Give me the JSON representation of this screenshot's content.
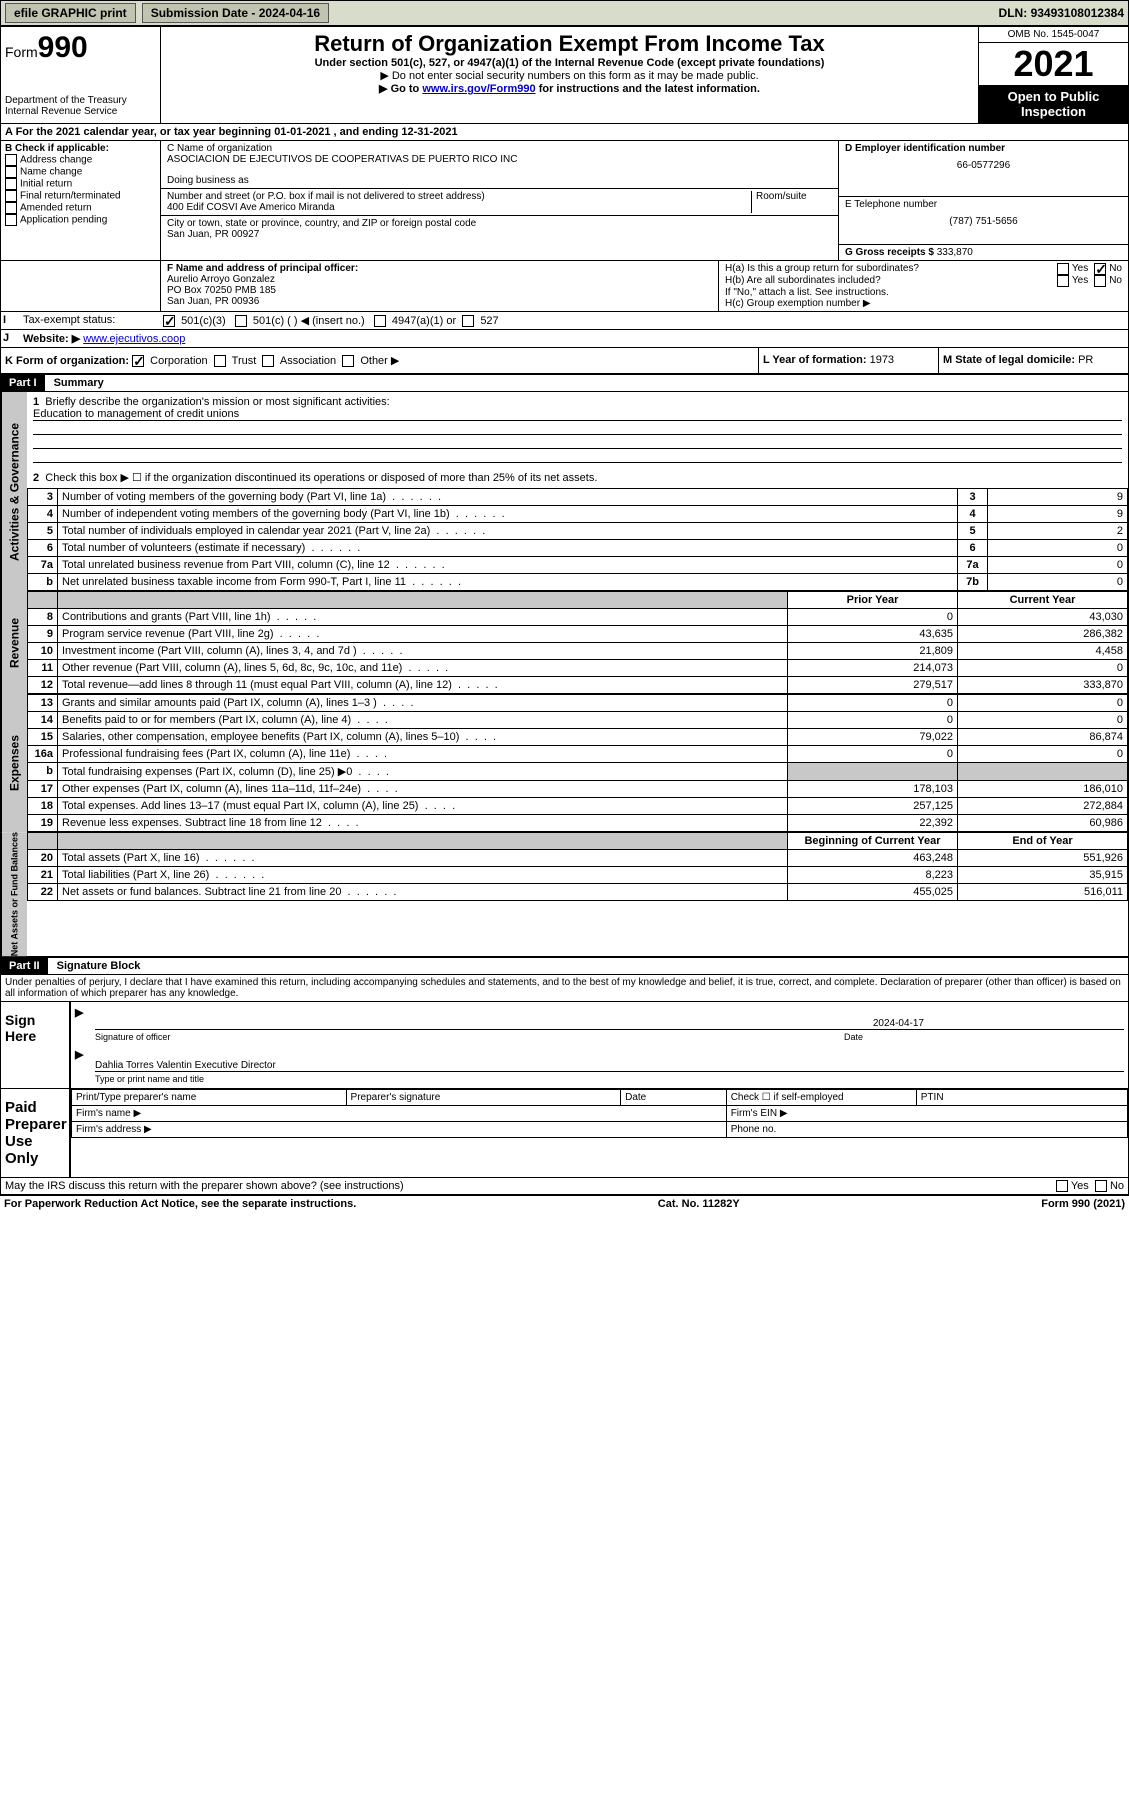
{
  "topbar": {
    "efile": "efile GRAPHIC print",
    "sub_label": "Submission Date -",
    "sub_date": "2024-04-16",
    "dln_label": "DLN:",
    "dln": "93493108012384"
  },
  "header": {
    "form_word": "Form",
    "form_no": "990",
    "dept": "Department of the Treasury",
    "irs": "Internal Revenue Service",
    "title": "Return of Organization Exempt From Income Tax",
    "sub1": "Under section 501(c), 527, or 4947(a)(1) of the Internal Revenue Code (except private foundations)",
    "sub2": "▶ Do not enter social security numbers on this form as it may be made public.",
    "sub3_pre": "▶ Go to ",
    "sub3_link": "www.irs.gov/Form990",
    "sub3_post": " for instructions and the latest information.",
    "omb": "OMB No. 1545-0047",
    "year": "2021",
    "open": "Open to Public Inspection"
  },
  "secA": {
    "text": "A For the 2021 calendar year, or tax year beginning 01-01-2021   , and ending 12-31-2021"
  },
  "secB": {
    "label": "B Check if applicable:",
    "items": [
      "Address change",
      "Name change",
      "Initial return",
      "Final return/terminated",
      "Amended return",
      "Application pending"
    ]
  },
  "secC": {
    "name_label": "C Name of organization",
    "name": "ASOCIACION DE EJECUTIVOS DE COOPERATIVAS DE PUERTO RICO INC",
    "dba_label": "Doing business as",
    "dba": "",
    "street_label": "Number and street (or P.O. box if mail is not delivered to street address)",
    "room_label": "Room/suite",
    "street": "400 Edif COSVI Ave Americo Miranda",
    "city_label": "City or town, state or province, country, and ZIP or foreign postal code",
    "city": "San Juan, PR  00927"
  },
  "secD": {
    "label": "D Employer identification number",
    "val": "66-0577296"
  },
  "secE": {
    "label": "E Telephone number",
    "val": "(787) 751-5656"
  },
  "secG": {
    "label": "G Gross receipts $",
    "val": "333,870"
  },
  "secF": {
    "label": "F Name and address of principal officer:",
    "name": "Aurelio Arroyo Gonzalez",
    "addr1": "PO Box 70250 PMB 185",
    "addr2": "San Juan, PR  00936"
  },
  "secH": {
    "ha": "H(a)  Is this a group return for subordinates?",
    "hb": "H(b)  Are all subordinates included?",
    "hb_note": "If \"No,\" attach a list. See instructions.",
    "hc": "H(c)  Group exemption number ▶",
    "yes": "Yes",
    "no": "No"
  },
  "secI": {
    "label": "Tax-exempt status:",
    "opt1": "501(c)(3)",
    "opt2": "501(c) (  ) ◀ (insert no.)",
    "opt3": "4947(a)(1) or",
    "opt4": "527"
  },
  "secJ": {
    "label": "Website: ▶",
    "val": "www.ejecutivos.coop"
  },
  "secK": {
    "label": "K Form of organization:",
    "opts": [
      "Corporation",
      "Trust",
      "Association",
      "Other ▶"
    ]
  },
  "secL": {
    "label": "L Year of formation:",
    "val": "1973"
  },
  "secM": {
    "label": "M State of legal domicile:",
    "val": "PR"
  },
  "part1": {
    "hdr": "Part I",
    "title": "Summary"
  },
  "summary": {
    "q1_label": "1",
    "q1_text": "Briefly describe the organization's mission or most significant activities:",
    "q1_answer": "Education to management of credit unions",
    "q2_label": "2",
    "q2_text": "Check this box ▶ ☐  if the organization discontinued its operations or disposed of more than 25% of its net assets."
  },
  "gov_rows": [
    {
      "n": "3",
      "text": "Number of voting members of the governing body (Part VI, line 1a)",
      "box": "3",
      "val": "9"
    },
    {
      "n": "4",
      "text": "Number of independent voting members of the governing body (Part VI, line 1b)",
      "box": "4",
      "val": "9"
    },
    {
      "n": "5",
      "text": "Total number of individuals employed in calendar year 2021 (Part V, line 2a)",
      "box": "5",
      "val": "2"
    },
    {
      "n": "6",
      "text": "Total number of volunteers (estimate if necessary)",
      "box": "6",
      "val": "0"
    },
    {
      "n": "7a",
      "text": "Total unrelated business revenue from Part VIII, column (C), line 12",
      "box": "7a",
      "val": "0"
    },
    {
      "n": "b",
      "text": "Net unrelated business taxable income from Form 990-T, Part I, line 11",
      "box": "7b",
      "val": "0"
    }
  ],
  "col_hdrs": {
    "prior": "Prior Year",
    "current": "Current Year"
  },
  "revenue_rows": [
    {
      "n": "8",
      "text": "Contributions and grants (Part VIII, line 1h)",
      "p": "0",
      "c": "43,030"
    },
    {
      "n": "9",
      "text": "Program service revenue (Part VIII, line 2g)",
      "p": "43,635",
      "c": "286,382"
    },
    {
      "n": "10",
      "text": "Investment income (Part VIII, column (A), lines 3, 4, and 7d )",
      "p": "21,809",
      "c": "4,458"
    },
    {
      "n": "11",
      "text": "Other revenue (Part VIII, column (A), lines 5, 6d, 8c, 9c, 10c, and 11e)",
      "p": "214,073",
      "c": "0"
    },
    {
      "n": "12",
      "text": "Total revenue—add lines 8 through 11 (must equal Part VIII, column (A), line 12)",
      "p": "279,517",
      "c": "333,870"
    }
  ],
  "expense_rows": [
    {
      "n": "13",
      "text": "Grants and similar amounts paid (Part IX, column (A), lines 1–3 )",
      "p": "0",
      "c": "0"
    },
    {
      "n": "14",
      "text": "Benefits paid to or for members (Part IX, column (A), line 4)",
      "p": "0",
      "c": "0"
    },
    {
      "n": "15",
      "text": "Salaries, other compensation, employee benefits (Part IX, column (A), lines 5–10)",
      "p": "79,022",
      "c": "86,874"
    },
    {
      "n": "16a",
      "text": "Professional fundraising fees (Part IX, column (A), line 11e)",
      "p": "0",
      "c": "0"
    },
    {
      "n": "b",
      "text": "Total fundraising expenses (Part IX, column (D), line 25) ▶0",
      "p": "",
      "c": "",
      "grey": true
    },
    {
      "n": "17",
      "text": "Other expenses (Part IX, column (A), lines 11a–11d, 11f–24e)",
      "p": "178,103",
      "c": "186,010"
    },
    {
      "n": "18",
      "text": "Total expenses. Add lines 13–17 (must equal Part IX, column (A), line 25)",
      "p": "257,125",
      "c": "272,884"
    },
    {
      "n": "19",
      "text": "Revenue less expenses. Subtract line 18 from line 12",
      "p": "22,392",
      "c": "60,986"
    }
  ],
  "net_hdrs": {
    "begin": "Beginning of Current Year",
    "end": "End of Year"
  },
  "net_rows": [
    {
      "n": "20",
      "text": "Total assets (Part X, line 16)",
      "p": "463,248",
      "c": "551,926"
    },
    {
      "n": "21",
      "text": "Total liabilities (Part X, line 26)",
      "p": "8,223",
      "c": "35,915"
    },
    {
      "n": "22",
      "text": "Net assets or fund balances. Subtract line 21 from line 20",
      "p": "455,025",
      "c": "516,011"
    }
  ],
  "side_labels": {
    "gov": "Activities & Governance",
    "rev": "Revenue",
    "exp": "Expenses",
    "net": "Net Assets or Fund Balances"
  },
  "part2": {
    "hdr": "Part II",
    "title": "Signature Block"
  },
  "perjury": "Under penalties of perjury, I declare that I have examined this return, including accompanying schedules and statements, and to the best of my knowledge and belief, it is true, correct, and complete. Declaration of preparer (other than officer) is based on all information of which preparer has any knowledge.",
  "sign": {
    "here": "Sign Here",
    "sig_label": "Signature of officer",
    "date_label": "Date",
    "date": "2024-04-17",
    "name": "Dahlia Torres Valentin  Executive Director",
    "name_label": "Type or print name and title"
  },
  "preparer": {
    "label": "Paid Preparer Use Only",
    "h1": "Print/Type preparer's name",
    "h2": "Preparer's signature",
    "h3": "Date",
    "h4": "Check ☐  if self-employed",
    "h5": "PTIN",
    "firm_name": "Firm's name    ▶",
    "firm_ein": "Firm's EIN ▶",
    "firm_addr": "Firm's address ▶",
    "phone": "Phone no."
  },
  "discuss": {
    "text": "May the IRS discuss this return with the preparer shown above? (see instructions)",
    "yes": "Yes",
    "no": "No"
  },
  "footer": {
    "left": "For Paperwork Reduction Act Notice, see the separate instructions.",
    "mid": "Cat. No. 11282Y",
    "right": "Form 990 (2021)"
  }
}
